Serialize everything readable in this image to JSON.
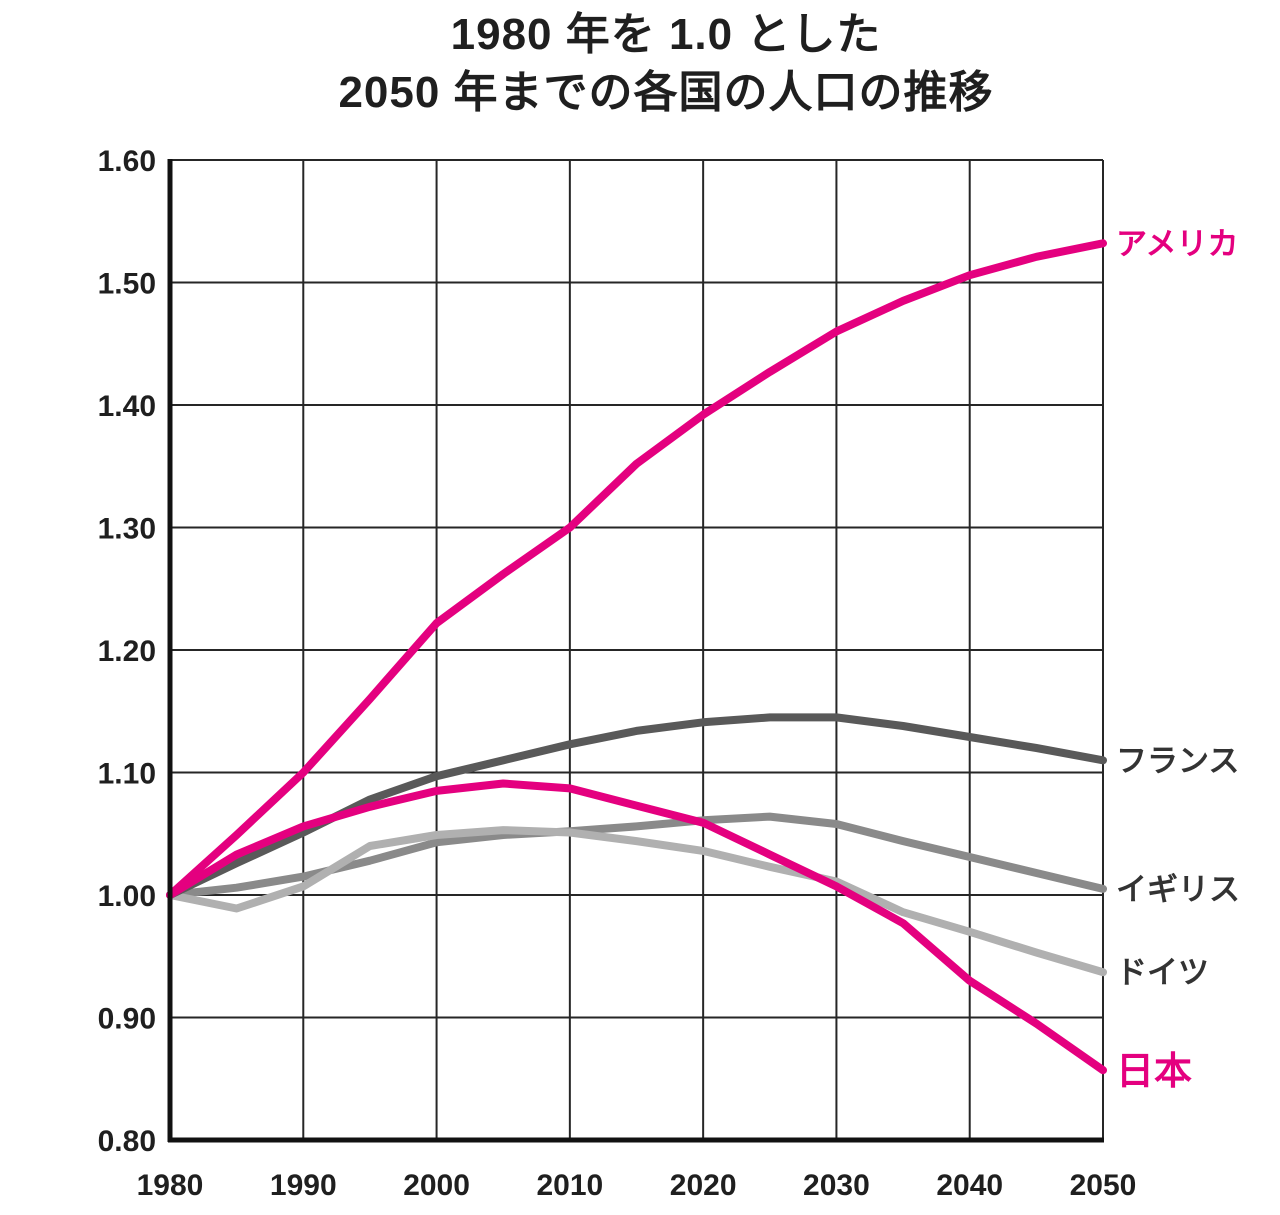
{
  "title": {
    "line1": "1980 年を 1.0 とした",
    "line2": "2050 年までの各国の人口の推移"
  },
  "chart_data": {
    "type": "line",
    "title": "1980 年を 1.0 とした 2050 年までの各国の人口の推移",
    "x": [
      1980,
      1985,
      1990,
      1995,
      2000,
      2005,
      2010,
      2015,
      2020,
      2025,
      2030,
      2035,
      2040,
      2045,
      2050
    ],
    "xlim": [
      1980,
      2050
    ],
    "ylim": [
      0.8,
      1.6
    ],
    "x_ticks": [
      1980,
      1990,
      2000,
      2010,
      2020,
      2030,
      2040,
      2050
    ],
    "x_tick_labels": [
      "1980",
      "1990",
      "2000",
      "2010",
      "2020",
      "2030",
      "2040",
      "2050"
    ],
    "y_ticks": [
      0.8,
      0.9,
      1.0,
      1.1,
      1.2,
      1.3,
      1.4,
      1.5,
      1.6
    ],
    "y_tick_labels": [
      "0.80",
      "0.90",
      "1.00",
      "1.10",
      "1.20",
      "1.30",
      "1.40",
      "1.50",
      "1.60"
    ],
    "grid": true,
    "legend_position": "right-of-line-ends",
    "baseline_note": "1980 = 1.0",
    "series": [
      {
        "id": "uk",
        "label": "イギリス",
        "color": "#8a8a8a",
        "label_color": "#333333",
        "emphasis": false,
        "values": [
          1.0,
          1.006,
          1.015,
          1.028,
          1.043,
          1.049,
          1.052,
          1.056,
          1.061,
          1.064,
          1.058,
          1.044,
          1.031,
          1.018,
          1.005
        ]
      },
      {
        "id": "germany",
        "label": "ドイツ",
        "color": "#b0b0b0",
        "label_color": "#333333",
        "emphasis": false,
        "values": [
          1.0,
          0.989,
          1.007,
          1.04,
          1.049,
          1.053,
          1.051,
          1.044,
          1.036,
          1.023,
          1.011,
          0.986,
          0.97,
          0.953,
          0.937
        ]
      },
      {
        "id": "france",
        "label": "フランス",
        "color": "#595959",
        "label_color": "#333333",
        "emphasis": false,
        "values": [
          1.0,
          1.026,
          1.051,
          1.078,
          1.097,
          1.11,
          1.123,
          1.134,
          1.141,
          1.145,
          1.145,
          1.138,
          1.129,
          1.12,
          1.11
        ]
      },
      {
        "id": "japan",
        "label": "日本",
        "color": "#e4007f",
        "label_color": "#e4007f",
        "emphasis": true,
        "values": [
          1.0,
          1.033,
          1.056,
          1.072,
          1.085,
          1.091,
          1.087,
          1.073,
          1.059,
          1.033,
          1.007,
          0.977,
          0.93,
          0.895,
          0.857
        ]
      },
      {
        "id": "america",
        "label": "アメリカ",
        "color": "#e4007f",
        "label_color": "#e4007f",
        "emphasis": false,
        "values": [
          1.0,
          1.049,
          1.1,
          1.16,
          1.222,
          1.262,
          1.3,
          1.352,
          1.392,
          1.427,
          1.46,
          1.485,
          1.506,
          1.521,
          1.532
        ]
      }
    ]
  }
}
